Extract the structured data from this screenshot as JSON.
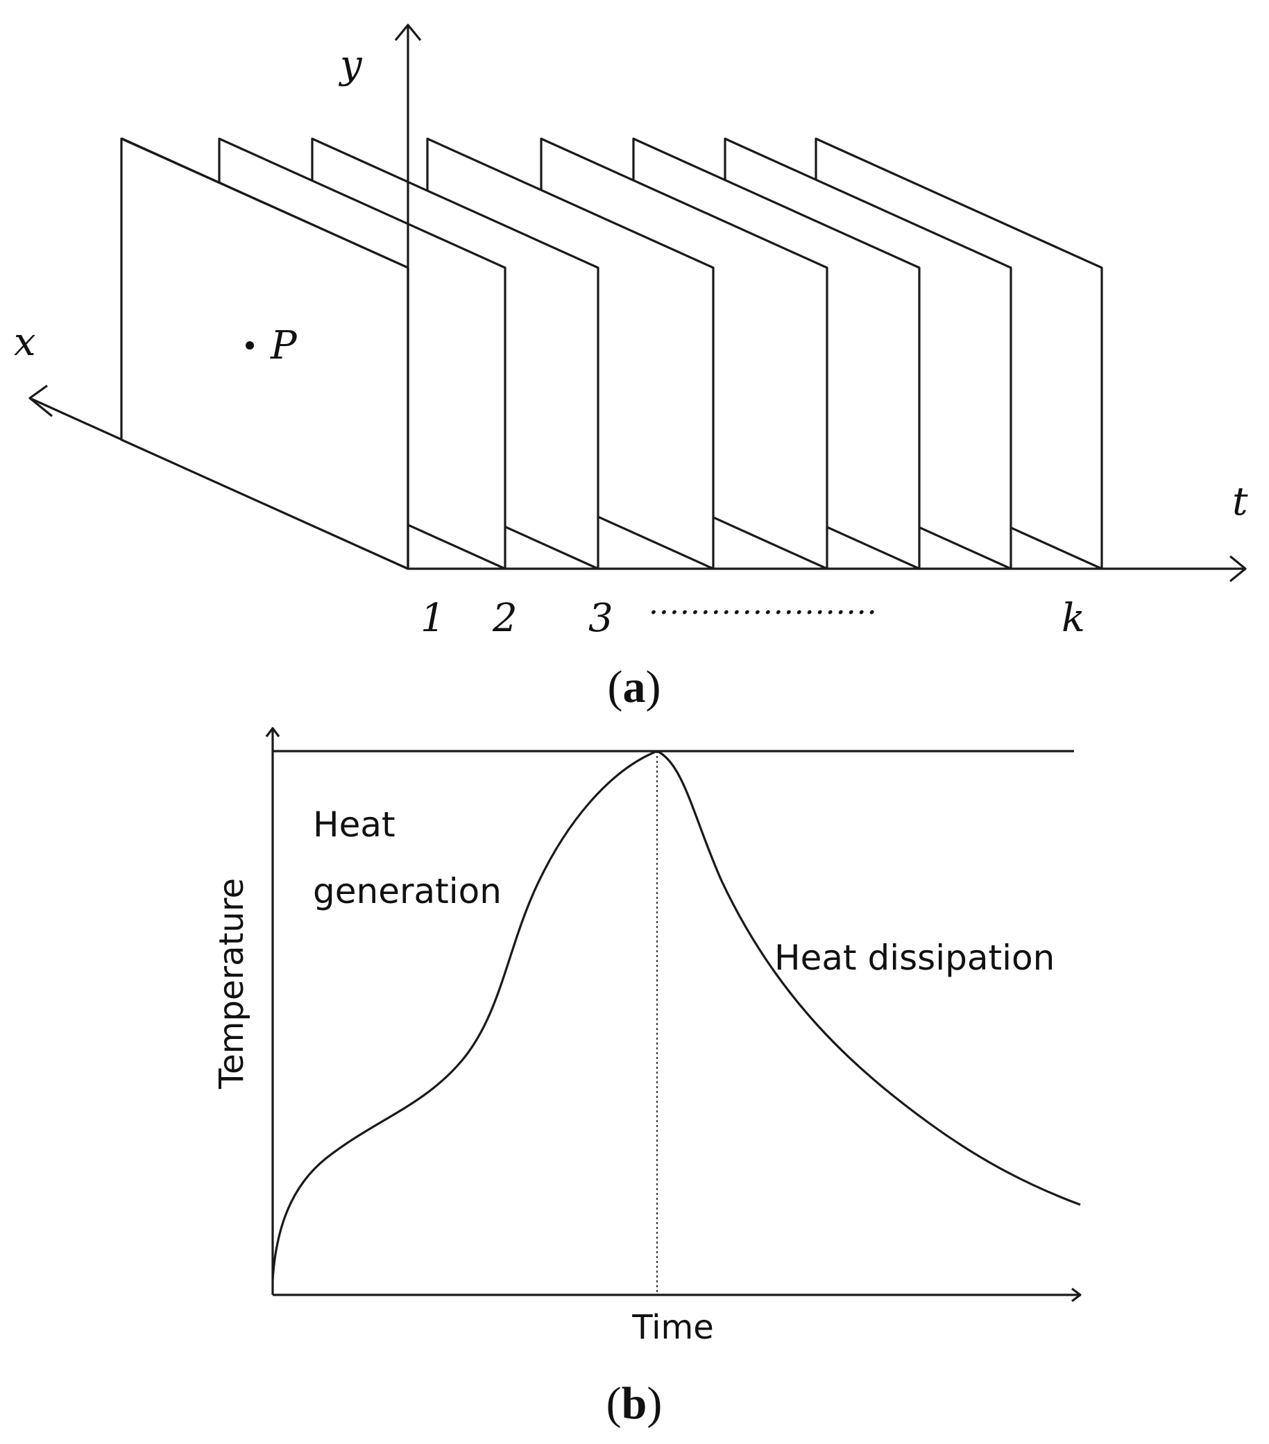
{
  "panel_a": {
    "axis_x_label": "x",
    "axis_y_label": "y",
    "axis_t_label": "t",
    "point_label": "P",
    "frame_labels": [
      "1",
      "2",
      "3",
      "k"
    ],
    "ellipsis": "······················",
    "caption": {
      "open": "(",
      "letter": "a",
      "close": ")"
    }
  },
  "panel_b": {
    "y_axis_label": "Temperature",
    "x_axis_label": "Time",
    "phase_1_line1": "Heat",
    "phase_1_line2": "generation",
    "phase_2": "Heat dissipation",
    "caption": {
      "open": "(",
      "letter": "b",
      "close": ")"
    }
  }
}
